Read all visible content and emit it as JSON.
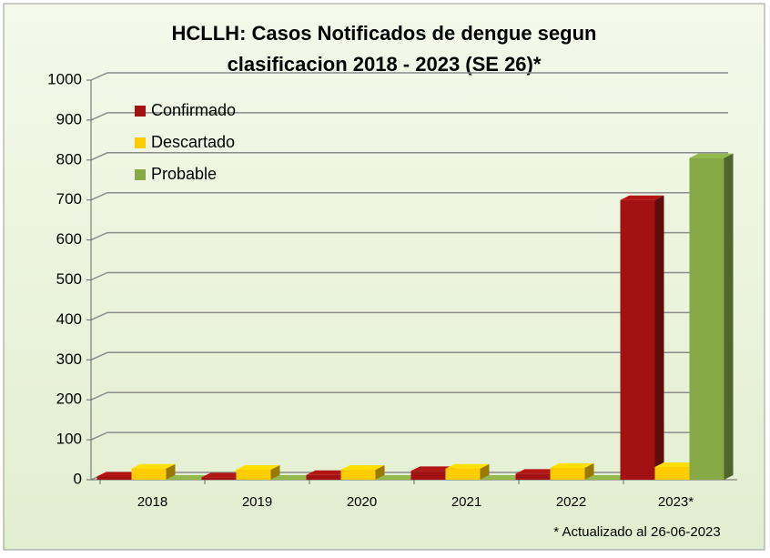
{
  "chart_data": {
    "type": "bar",
    "title": [
      "HCLLH: Casos Notificados de dengue segun",
      "clasificacion 2018 - 2023 (SE 26)*"
    ],
    "footnote": "* Actualizado al 26-06-2023",
    "categories": [
      "2018",
      "2019",
      "2020",
      "2021",
      "2022",
      "2023*"
    ],
    "series": [
      {
        "name": "Confirmado",
        "color": "#a31212",
        "values": [
          8,
          6,
          12,
          22,
          15,
          700
        ]
      },
      {
        "name": "Descartado",
        "color": "#ffcc00",
        "values": [
          28,
          25,
          25,
          28,
          30,
          32
        ]
      },
      {
        "name": "Probable",
        "color": "#86a845",
        "values": [
          0,
          0,
          0,
          0,
          0,
          805
        ]
      }
    ],
    "ylim": [
      0,
      1000
    ],
    "yticks": [
      0,
      100,
      200,
      300,
      400,
      500,
      600,
      700,
      800,
      900,
      1000
    ],
    "grid": true,
    "legend": "top-left"
  }
}
